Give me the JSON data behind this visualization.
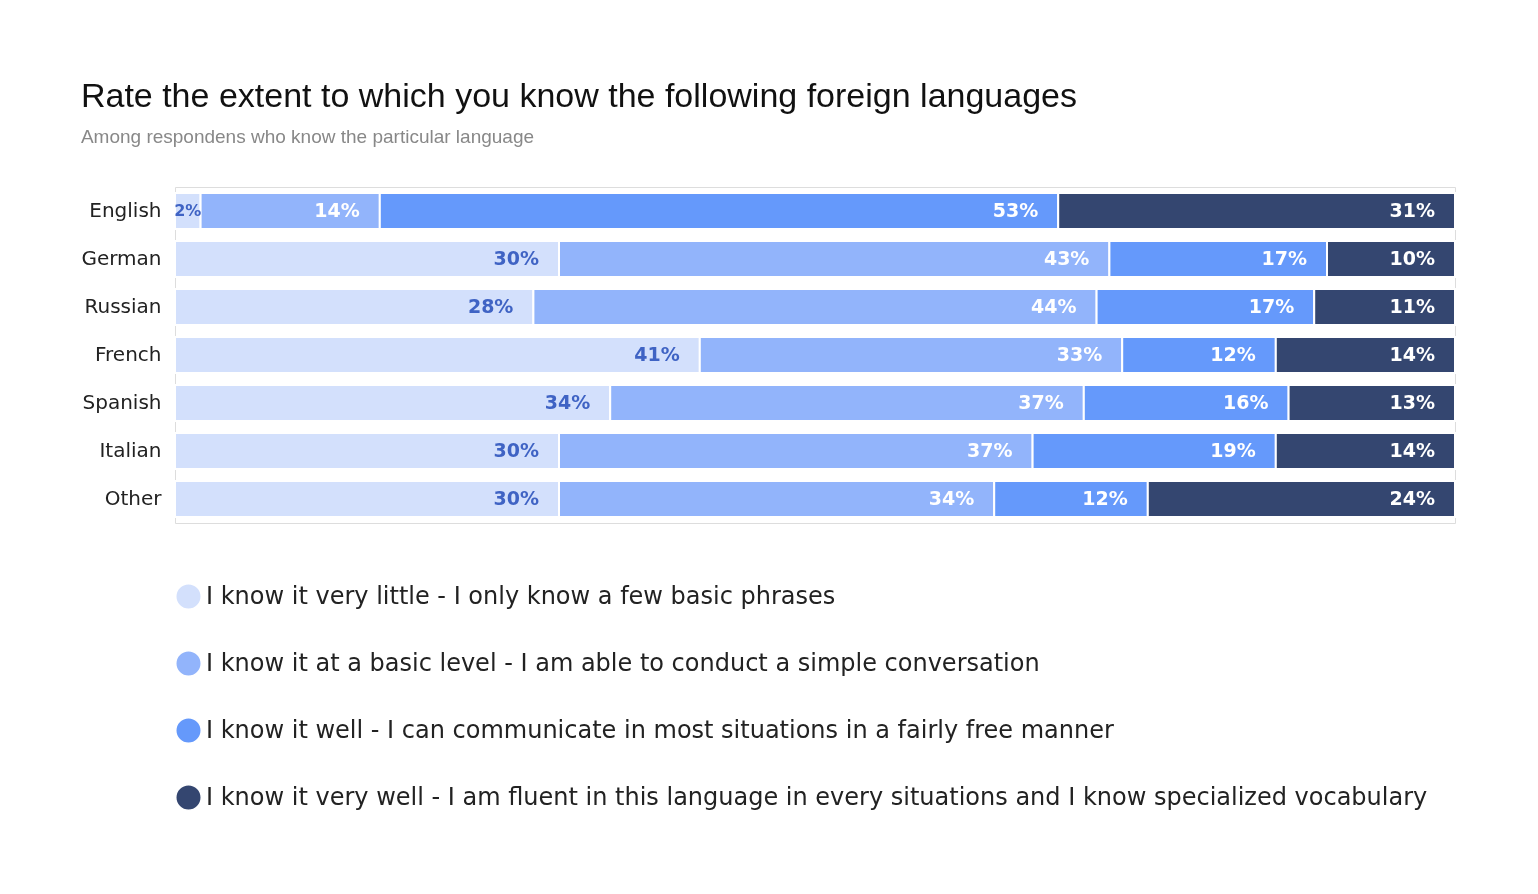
{
  "chart_data": {
    "type": "bar",
    "orientation": "horizontal",
    "stacked": true,
    "legend": "bottom",
    "title": "Rate the extent to which you know the following foreign languages",
    "subtitle": "Among respondens who know the particular language",
    "categories": [
      "English",
      "German",
      "Russian",
      "French",
      "Spanish",
      "Italian",
      "Other"
    ],
    "series": [
      {
        "name": "I know it very little - I only know a few basic phrases",
        "color": "#d3e0fc",
        "values": [
          2,
          30,
          28,
          41,
          34,
          30,
          30
        ],
        "value_labels": [
          "2%",
          "30%",
          "28%",
          "41%",
          "34%",
          "30%",
          "30%"
        ]
      },
      {
        "name": "I know it at a basic level - I am able to conduct a simple conversation",
        "color": "#92b4fb",
        "values": [
          14,
          43,
          44,
          33,
          37,
          37,
          34
        ],
        "value_labels": [
          "14%",
          "43%",
          "44%",
          "33%",
          "37%",
          "37%",
          "34%"
        ]
      },
      {
        "name": "I know it well - I can communicate in most situations in a fairly free manner",
        "color": "#6599fb",
        "values": [
          53,
          17,
          17,
          12,
          16,
          19,
          12
        ],
        "value_labels": [
          "53%",
          "17%",
          "17%",
          "12%",
          "16%",
          "19%",
          "12%"
        ]
      },
      {
        "name": "I know it very well - I am fluent in this language in every situations and I know specialized vocabulary",
        "color": "#344670",
        "values": [
          31,
          10,
          11,
          14,
          13,
          14,
          24
        ],
        "value_labels": [
          "31%",
          "10%",
          "11%",
          "14%",
          "13%",
          "14%",
          "24%"
        ]
      }
    ]
  }
}
